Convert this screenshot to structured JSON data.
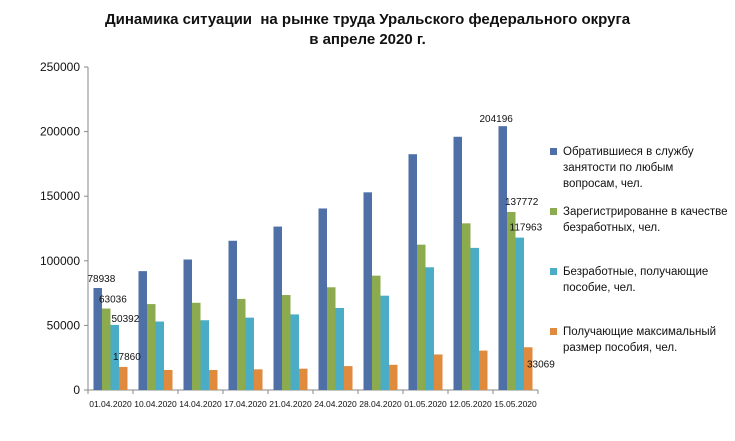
{
  "chart_data": {
    "type": "bar",
    "title": "Динамика ситуации  на рынке труда Уральского федерального округа",
    "subtitle": "в апреле 2020 г.",
    "categories": [
      "01.04.2020",
      "10.04.2020",
      "14.04.2020",
      "17.04.2020",
      "21.04.2020",
      "24.04.2020",
      "28.04.2020",
      "01.05.2020",
      "12.05.2020",
      "15.05.2020"
    ],
    "ylim": [
      0,
      250000
    ],
    "yticks": [
      0,
      50000,
      100000,
      150000,
      200000,
      250000
    ],
    "grid": false,
    "legend": "right",
    "series": [
      {
        "name": "Обратившиеся в службу занятости по любым вопросам, чел.",
        "color": "#4F6FA7",
        "values": [
          78938,
          92000,
          101000,
          115500,
          126500,
          140500,
          153000,
          182500,
          196000,
          204196
        ],
        "labels": [
          {
            "index": 0,
            "text": "78938"
          },
          {
            "index": 9,
            "text": "204196"
          }
        ]
      },
      {
        "name": "Зарегистрированне в качестве безработных, чел.",
        "color": "#8BAB4E",
        "values": [
          63036,
          66500,
          67500,
          70500,
          73500,
          79500,
          88500,
          112500,
          129000,
          137772
        ],
        "labels": [
          {
            "index": 0,
            "text": "63036"
          },
          {
            "index": 9,
            "text": "137772"
          }
        ]
      },
      {
        "name": "Безработные, получающие пособие, чел.",
        "color": "#4AACC5",
        "values": [
          50392,
          53000,
          54000,
          56000,
          58500,
          63500,
          73000,
          95000,
          110000,
          117963
        ],
        "labels": [
          {
            "index": 0,
            "text": "50392"
          },
          {
            "index": 9,
            "text": "117963"
          }
        ]
      },
      {
        "name": "Получающие максимальный размер пособия, чел.",
        "color": "#E08A3E",
        "values": [
          17860,
          15500,
          15500,
          16000,
          16500,
          18500,
          19500,
          27500,
          30500,
          33069
        ],
        "labels": [
          {
            "index": 0,
            "text": "17860"
          },
          {
            "index": 9,
            "text": "33069"
          }
        ]
      }
    ]
  }
}
